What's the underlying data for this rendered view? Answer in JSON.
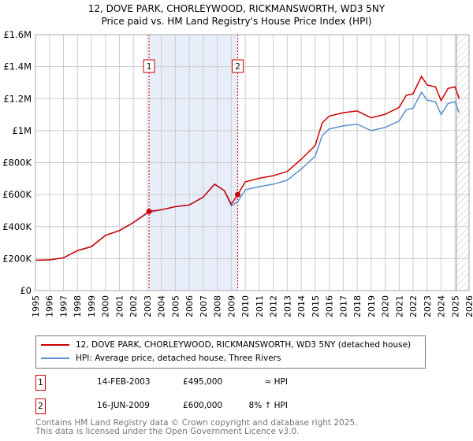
{
  "chart_data": {
    "type": "line",
    "title": "12, DOVE PARK, CHORLEYWOOD, RICKMANSWORTH, WD3 5NY",
    "subtitle": "Price paid vs. HM Land Registry's House Price Index (HPI)",
    "xlim": [
      1995,
      2026
    ],
    "ylim": [
      0,
      1600000
    ],
    "x_ticks": [
      "1995",
      "1996",
      "1997",
      "1998",
      "1999",
      "2000",
      "2001",
      "2002",
      "2003",
      "2004",
      "2005",
      "2006",
      "2007",
      "2008",
      "2009",
      "2010",
      "2011",
      "2012",
      "2013",
      "2014",
      "2015",
      "2016",
      "2017",
      "2018",
      "2019",
      "2020",
      "2021",
      "2022",
      "2023",
      "2024",
      "2025",
      "2026"
    ],
    "y_ticks": [
      {
        "v": 0,
        "label": "£0"
      },
      {
        "v": 200000,
        "label": "£200K"
      },
      {
        "v": 400000,
        "label": "£400K"
      },
      {
        "v": 600000,
        "label": "£600K"
      },
      {
        "v": 800000,
        "label": "£800K"
      },
      {
        "v": 1000000,
        "label": "£1M"
      },
      {
        "v": 1200000,
        "label": "£1.2M"
      },
      {
        "v": 1400000,
        "label": "£1.4M"
      },
      {
        "v": 1600000,
        "label": "£1.6M"
      }
    ],
    "grid": true,
    "x": [
      1995,
      1996,
      1997,
      1998,
      1999,
      2000,
      2001,
      2002,
      2003.12,
      2004,
      2005,
      2006,
      2007,
      2007.8,
      2008.5,
      2009,
      2009.46,
      2010,
      2011,
      2012,
      2013,
      2014,
      2015,
      2015.5,
      2016,
      2017,
      2018,
      2019,
      2020,
      2021,
      2021.5,
      2022,
      2022.6,
      2023,
      2023.6,
      2024,
      2024.5,
      2025,
      2025.3
    ],
    "series": [
      {
        "name": "12, DOVE PARK, CHORLEYWOOD, RICKMANSWORTH, WD3 5NY (detached house)",
        "color": "#cc0000",
        "values": [
          190000,
          192000,
          205000,
          250000,
          275000,
          345000,
          375000,
          425000,
          495000,
          505000,
          525000,
          535000,
          585000,
          665000,
          625000,
          540000,
          600000,
          680000,
          702000,
          718000,
          745000,
          821000,
          907000,
          1048000,
          1091000,
          1112000,
          1123000,
          1080000,
          1102000,
          1145000,
          1220000,
          1231000,
          1339000,
          1285000,
          1274000,
          1188000,
          1264000,
          1274000,
          1199000
        ]
      },
      {
        "name": "HPI: Average price, detached house, Three Rivers",
        "color": "#5b8fd0",
        "values": [
          190000,
          192000,
          205000,
          250000,
          275000,
          345000,
          375000,
          425000,
          490000,
          505000,
          525000,
          535000,
          585000,
          665000,
          625000,
          530000,
          555000,
          630000,
          650000,
          665000,
          690000,
          760000,
          840000,
          970000,
          1010000,
          1030000,
          1040000,
          1000000,
          1020000,
          1060000,
          1130000,
          1140000,
          1240000,
          1190000,
          1180000,
          1100000,
          1170000,
          1180000,
          1110000
        ]
      }
    ],
    "sales": [
      {
        "id": "1",
        "x": 2003.12,
        "price": 495000,
        "date": "14-FEB-2003",
        "price_label": "£495,000",
        "hpi": "≈ HPI"
      },
      {
        "id": "2",
        "x": 2009.46,
        "price": 600000,
        "date": "16-JUN-2009",
        "price_label": "£600,000",
        "hpi": "8% ↑ HPI"
      }
    ],
    "forecast_start": 2025.1,
    "legend_position": "below"
  },
  "footer": {
    "line1": "Contains HM Land Registry data © Crown copyright and database right 2025.",
    "line2": "This data is licensed under the Open Government Licence v3.0."
  }
}
